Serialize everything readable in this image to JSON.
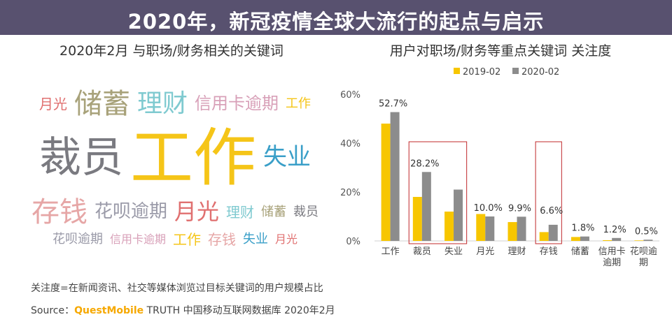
{
  "left_title": "2020年2月 与职场/财务相关的关键词",
  "right_title": "用户对职场/财务等重点关键词 关注度",
  "banner_title": "2020年，新冠疫情全球大流行的起点与启示",
  "word_cloud": [
    "工作",
    "裁员",
    "储蓄",
    "理财",
    "存钱",
    "花呗逾期",
    "信用卡逾期",
    "月光",
    "失业"
  ],
  "watermark": "QUESTMOBILE",
  "footnote": "关注度=在新闻资讯、社交等媒体浏览过目标关键词的用户规模占比",
  "source": {
    "label": "Source：",
    "brand": "QuestMobile",
    "text": " TRUTH 中国移动互联网数据库 2020年2月"
  },
  "colors": {
    "series_2019": "#f7c600",
    "series_2020": "#8c8c8c",
    "highlight_box": "#c0282a",
    "banner": "#463e5f"
  },
  "chart_data": {
    "type": "bar",
    "title": "用户对职场/财务等重点关键词 关注度",
    "categories": [
      "工作",
      "裁员",
      "失业",
      "月光",
      "理财",
      "存钱",
      "储蓄",
      "信用卡逾期",
      "花呗逾期"
    ],
    "series": [
      {
        "name": "2019-02",
        "values": [
          48.0,
          18.0,
          12.0,
          11.0,
          7.7,
          3.6,
          1.6,
          0.3,
          0.2
        ]
      },
      {
        "name": "2020-02",
        "values": [
          52.7,
          28.2,
          21.0,
          10.0,
          9.9,
          6.6,
          1.8,
          1.2,
          0.5
        ]
      }
    ],
    "data_labels": [
      "52.7%",
      "28.2%",
      "",
      "10.0%",
      "9.9%",
      "6.6%",
      "1.8%",
      "1.2%",
      "0.5%"
    ],
    "yticks": [
      "0%",
      "20%",
      "40%",
      "60%"
    ],
    "ylim": [
      0,
      60
    ],
    "legend": "top",
    "grid": false,
    "highlighted_categories": [
      [
        "裁员",
        "失业"
      ],
      [
        "存钱"
      ]
    ]
  }
}
